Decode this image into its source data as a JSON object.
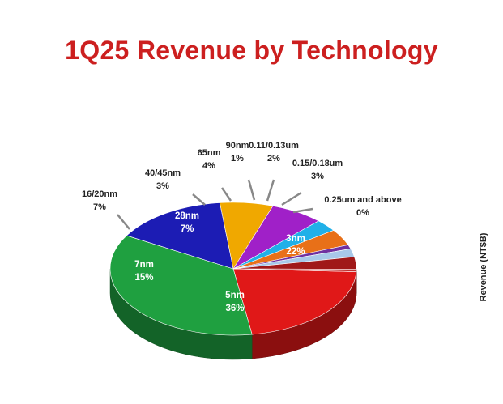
{
  "title": "1Q25 Revenue by Technology",
  "chart_data": {
    "type": "pie",
    "title": "1Q25 Revenue by Technology",
    "ylabel": "Revenue (NT$B)",
    "slices": [
      {
        "label": "3nm",
        "value": 22,
        "display": "22%",
        "color": "#e01818"
      },
      {
        "label": "5nm",
        "value": 36,
        "display": "36%",
        "color": "#1fa040"
      },
      {
        "label": "7nm",
        "value": 15,
        "display": "15%",
        "color": "#1c1cb4"
      },
      {
        "label": "16/20nm",
        "value": 7,
        "display": "7%",
        "color": "#f0a800"
      },
      {
        "label": "28nm",
        "value": 7,
        "display": "7%",
        "color": "#a020c8"
      },
      {
        "label": "40/45nm",
        "value": 3,
        "display": "3%",
        "color": "#20b0e8"
      },
      {
        "label": "65nm",
        "value": 4,
        "display": "4%",
        "color": "#e87018"
      },
      {
        "label": "90nm",
        "value": 1,
        "display": "1%",
        "color": "#7030a0"
      },
      {
        "label": "0.11/0.13um",
        "value": 2,
        "display": "2%",
        "color": "#a8c8e8"
      },
      {
        "label": "0.15/0.18um",
        "value": 3,
        "display": "3%",
        "color": "#a01818"
      },
      {
        "label": "0.25um and above",
        "value": 0,
        "display": "0%",
        "color": "#c03030"
      }
    ]
  }
}
